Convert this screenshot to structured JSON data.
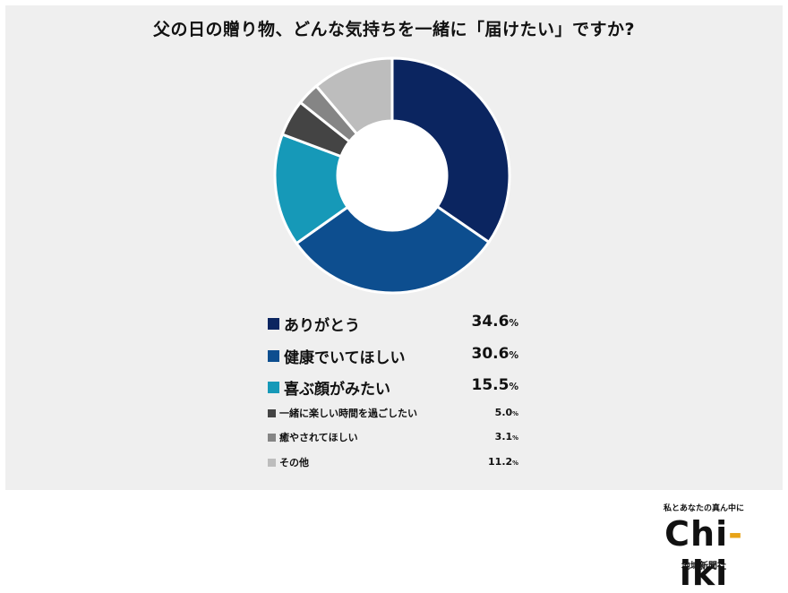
{
  "title": "父の日の贈り物、どんな気持ちを一緒に「届けたい」ですか?",
  "chart_data": {
    "type": "pie",
    "variant": "donut",
    "title": "父の日の贈り物、どんな気持ちを一緒に「届けたい」ですか?",
    "categories": [
      "ありがとう",
      "健康でいてほしい",
      "喜ぶ顔がみたい",
      "一緒に楽しい時間を過ごしたい",
      "癒やされてほしい",
      "その他"
    ],
    "values": [
      34.6,
      30.6,
      15.5,
      5.0,
      3.1,
      11.2
    ],
    "value_display": [
      "34.6",
      "30.6",
      "15.5",
      "5.0",
      "3.1",
      "11.2"
    ],
    "unit": "%",
    "colors": [
      "#0b2560",
      "#0d4e8f",
      "#1699b8",
      "#444444",
      "#858585",
      "#bdbdbd"
    ],
    "legend_position": "bottom"
  },
  "logo": {
    "tagline": "私とあなたの真ん中に",
    "word_start": "Chi",
    "word_accent": "-",
    "word_end": "iki",
    "company": "地域新聞社"
  }
}
